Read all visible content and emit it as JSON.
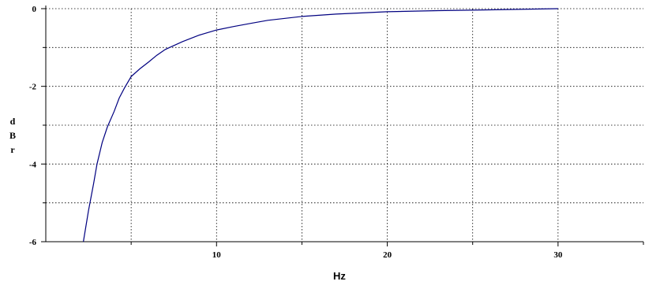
{
  "chart_data": {
    "type": "line",
    "title": "",
    "xlabel": "Hz",
    "ylabel": "dBr",
    "xlim": [
      0,
      35
    ],
    "ylim": [
      -6,
      0
    ],
    "x_ticks": [
      10,
      20,
      30
    ],
    "y_ticks": [
      0,
      -2,
      -4,
      -6
    ],
    "grid": true,
    "line_color": "#000080",
    "series": [
      {
        "x": [
          2.2,
          2.5,
          2.8,
          3.0,
          3.3,
          3.6,
          4.0,
          4.3,
          4.6,
          5.0,
          5.5,
          6.0,
          6.5,
          7.0,
          8.0,
          9.0,
          10.0,
          11.0,
          12.0,
          13.0,
          15.0,
          17.0,
          20.0,
          23.0,
          26.0,
          30.0
        ],
        "y": [
          -6.0,
          -5.2,
          -4.5,
          -4.0,
          -3.45,
          -3.05,
          -2.65,
          -2.3,
          -2.05,
          -1.75,
          -1.55,
          -1.38,
          -1.2,
          -1.05,
          -0.85,
          -0.68,
          -0.55,
          -0.46,
          -0.38,
          -0.3,
          -0.2,
          -0.14,
          -0.08,
          -0.05,
          -0.03,
          0.0
        ]
      }
    ]
  }
}
